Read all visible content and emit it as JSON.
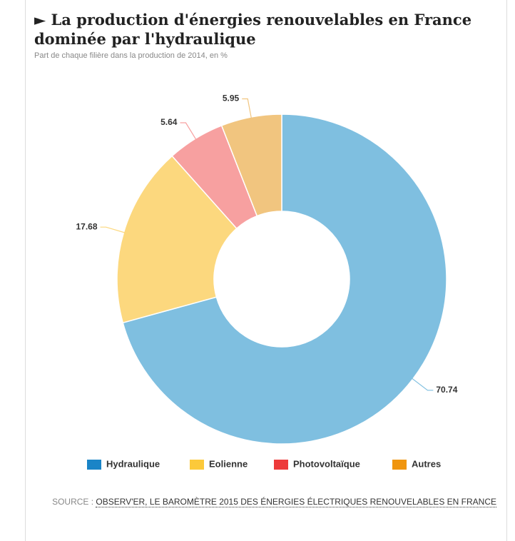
{
  "chart_data": {
    "type": "donut",
    "title": "► La production d'énergies renouvelables en France dominée par l'hydraulique",
    "subtitle": "Part de chaque filière dans la production de 2014, en %",
    "categories": [
      "Hydraulique",
      "Eolienne",
      "Photovoltaïque",
      "Autres"
    ],
    "values": [
      70.74,
      17.68,
      5.64,
      5.95
    ],
    "colors": [
      "#7fbfe0",
      "#fcd87e",
      "#f7a0a0",
      "#f1c57f"
    ],
    "legend_colors": [
      "#1a84c7",
      "#fcc93a",
      "#ed3a3a",
      "#f0950e"
    ],
    "legend": "bottom",
    "source_label": "SOURCE :",
    "source": "OBSERV'ER, LE BAROMÈTRE 2015 DES ÉNERGIES ÉLECTRIQUES RENOUVELABLES EN FRANCE"
  }
}
